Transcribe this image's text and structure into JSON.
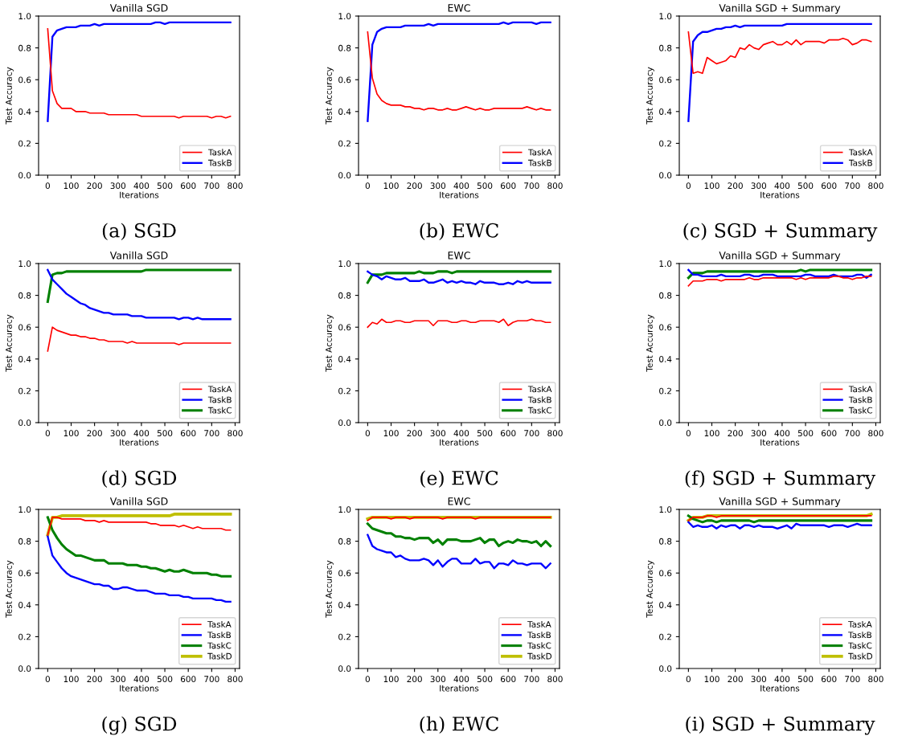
{
  "chart_data": [
    {
      "type": "line",
      "title": "Vanilla SGD",
      "xlabel": "Iterations",
      "ylabel": "Test Accuracy",
      "annotations": [
        "(a) SGD"
      ],
      "legend": "bottom right",
      "xlim": [
        -39,
        819
      ],
      "ylim": [
        0,
        1
      ],
      "xticks": [
        0,
        100,
        200,
        300,
        400,
        500,
        600,
        700,
        800
      ],
      "yticks": [
        {
          "value": 0,
          "label": "0.0"
        },
        {
          "value": 0.2,
          "label": "0.2"
        },
        {
          "value": 0.4,
          "label": "0.4"
        },
        {
          "value": 0.6,
          "label": "0.6"
        },
        {
          "value": 0.8,
          "label": "0.8"
        },
        {
          "value": 1,
          "label": "1.0"
        }
      ],
      "x": [
        0,
        20,
        40,
        60,
        80,
        100,
        120,
        140,
        160,
        180,
        200,
        220,
        240,
        260,
        280,
        300,
        320,
        340,
        360,
        380,
        400,
        420,
        440,
        460,
        480,
        500,
        520,
        540,
        560,
        580,
        600,
        620,
        640,
        660,
        680,
        700,
        720,
        740,
        760,
        780
      ],
      "series": [
        {
          "name": "TaskA",
          "color": "#ff0000",
          "values": [
            0.92,
            0.53,
            0.45,
            0.42,
            0.42,
            0.42,
            0.4,
            0.4,
            0.4,
            0.39,
            0.39,
            0.39,
            0.39,
            0.38,
            0.38,
            0.38,
            0.38,
            0.38,
            0.38,
            0.38,
            0.37,
            0.37,
            0.37,
            0.37,
            0.37,
            0.37,
            0.37,
            0.37,
            0.36,
            0.37,
            0.37,
            0.37,
            0.37,
            0.37,
            0.37,
            0.36,
            0.37,
            0.37,
            0.36,
            0.37
          ]
        },
        {
          "name": "TaskB",
          "color": "#0000ff",
          "values": [
            0.34,
            0.87,
            0.91,
            0.92,
            0.93,
            0.93,
            0.93,
            0.94,
            0.94,
            0.94,
            0.95,
            0.94,
            0.95,
            0.95,
            0.95,
            0.95,
            0.95,
            0.95,
            0.95,
            0.95,
            0.95,
            0.95,
            0.95,
            0.96,
            0.96,
            0.95,
            0.96,
            0.96,
            0.96,
            0.96,
            0.96,
            0.96,
            0.96,
            0.96,
            0.96,
            0.96,
            0.96,
            0.96,
            0.96,
            0.96
          ]
        }
      ]
    },
    {
      "type": "line",
      "title": "EWC",
      "xlabel": "Iterations",
      "ylabel": "Test Accuracy",
      "annotations": [
        "(b) EWC"
      ],
      "legend": "bottom right",
      "xlim": [
        -39,
        819
      ],
      "ylim": [
        0,
        1
      ],
      "xticks": [
        0,
        100,
        200,
        300,
        400,
        500,
        600,
        700,
        800
      ],
      "yticks": [
        {
          "value": 0,
          "label": "0.0"
        },
        {
          "value": 0.2,
          "label": "0.2"
        },
        {
          "value": 0.4,
          "label": "0.4"
        },
        {
          "value": 0.6,
          "label": "0.6"
        },
        {
          "value": 0.8,
          "label": "0.8"
        },
        {
          "value": 1,
          "label": "1.0"
        }
      ],
      "x": [
        0,
        20,
        40,
        60,
        80,
        100,
        120,
        140,
        160,
        180,
        200,
        220,
        240,
        260,
        280,
        300,
        320,
        340,
        360,
        380,
        400,
        420,
        440,
        460,
        480,
        500,
        520,
        540,
        560,
        580,
        600,
        620,
        640,
        660,
        680,
        700,
        720,
        740,
        760,
        780
      ],
      "series": [
        {
          "name": "TaskA",
          "color": "#ff0000",
          "values": [
            0.9,
            0.61,
            0.51,
            0.47,
            0.45,
            0.44,
            0.44,
            0.44,
            0.43,
            0.43,
            0.42,
            0.42,
            0.41,
            0.42,
            0.42,
            0.41,
            0.41,
            0.42,
            0.41,
            0.41,
            0.42,
            0.43,
            0.42,
            0.41,
            0.42,
            0.41,
            0.41,
            0.42,
            0.42,
            0.42,
            0.42,
            0.42,
            0.42,
            0.42,
            0.43,
            0.42,
            0.41,
            0.42,
            0.41,
            0.41
          ]
        },
        {
          "name": "TaskB",
          "color": "#0000ff",
          "values": [
            0.34,
            0.82,
            0.9,
            0.92,
            0.93,
            0.93,
            0.93,
            0.93,
            0.94,
            0.94,
            0.94,
            0.94,
            0.94,
            0.95,
            0.94,
            0.95,
            0.95,
            0.95,
            0.95,
            0.95,
            0.95,
            0.95,
            0.95,
            0.95,
            0.95,
            0.95,
            0.95,
            0.95,
            0.95,
            0.96,
            0.95,
            0.96,
            0.96,
            0.96,
            0.96,
            0.96,
            0.95,
            0.96,
            0.96,
            0.96
          ]
        }
      ]
    },
    {
      "type": "line",
      "title": "Vanilla SGD + Summary",
      "xlabel": "Iterations",
      "ylabel": "Test Accuracy",
      "annotations": [
        "(c) SGD + Summary"
      ],
      "legend": "bottom right",
      "xlim": [
        -39,
        819
      ],
      "ylim": [
        0,
        1
      ],
      "xticks": [
        0,
        100,
        200,
        300,
        400,
        500,
        600,
        700,
        800
      ],
      "yticks": [
        {
          "value": 0,
          "label": "0.0"
        },
        {
          "value": 0.2,
          "label": "0.2"
        },
        {
          "value": 0.4,
          "label": "0.4"
        },
        {
          "value": 0.6,
          "label": "0.6"
        },
        {
          "value": 0.8,
          "label": "0.8"
        },
        {
          "value": 1,
          "label": "1.0"
        }
      ],
      "x": [
        0,
        20,
        40,
        60,
        80,
        100,
        120,
        140,
        160,
        180,
        200,
        220,
        240,
        260,
        280,
        300,
        320,
        340,
        360,
        380,
        400,
        420,
        440,
        460,
        480,
        500,
        520,
        540,
        560,
        580,
        600,
        620,
        640,
        660,
        680,
        700,
        720,
        740,
        760,
        780
      ],
      "series": [
        {
          "name": "TaskA",
          "color": "#ff0000",
          "values": [
            0.9,
            0.64,
            0.65,
            0.64,
            0.74,
            0.72,
            0.7,
            0.71,
            0.72,
            0.75,
            0.74,
            0.8,
            0.79,
            0.82,
            0.8,
            0.79,
            0.82,
            0.83,
            0.84,
            0.82,
            0.82,
            0.84,
            0.82,
            0.85,
            0.82,
            0.84,
            0.84,
            0.84,
            0.84,
            0.83,
            0.85,
            0.85,
            0.85,
            0.86,
            0.85,
            0.82,
            0.83,
            0.85,
            0.85,
            0.84
          ]
        },
        {
          "name": "TaskB",
          "color": "#0000ff",
          "values": [
            0.34,
            0.84,
            0.88,
            0.9,
            0.9,
            0.91,
            0.92,
            0.92,
            0.93,
            0.93,
            0.94,
            0.93,
            0.94,
            0.94,
            0.94,
            0.94,
            0.94,
            0.94,
            0.94,
            0.94,
            0.94,
            0.95,
            0.95,
            0.95,
            0.95,
            0.95,
            0.95,
            0.95,
            0.95,
            0.95,
            0.95,
            0.95,
            0.95,
            0.95,
            0.95,
            0.95,
            0.95,
            0.95,
            0.95,
            0.95
          ]
        }
      ]
    },
    {
      "type": "line",
      "title": "Vanilla SGD",
      "xlabel": "Iterations",
      "ylabel": "Test Accuracy",
      "annotations": [
        "(d) SGD"
      ],
      "legend": "bottom right",
      "xlim": [
        -39,
        819
      ],
      "ylim": [
        0,
        1
      ],
      "xticks": [
        0,
        100,
        200,
        300,
        400,
        500,
        600,
        700,
        800
      ],
      "yticks": [
        {
          "value": 0,
          "label": "0.0"
        },
        {
          "value": 0.2,
          "label": "0.2"
        },
        {
          "value": 0.4,
          "label": "0.4"
        },
        {
          "value": 0.6,
          "label": "0.6"
        },
        {
          "value": 0.8,
          "label": "0.8"
        },
        {
          "value": 1,
          "label": "1.0"
        }
      ],
      "x": [
        0,
        20,
        40,
        60,
        80,
        100,
        120,
        140,
        160,
        180,
        200,
        220,
        240,
        260,
        280,
        300,
        320,
        340,
        360,
        380,
        400,
        420,
        440,
        460,
        480,
        500,
        520,
        540,
        560,
        580,
        600,
        620,
        640,
        660,
        680,
        700,
        720,
        740,
        760,
        780
      ],
      "series": [
        {
          "name": "TaskA",
          "color": "#ff0000",
          "values": [
            0.45,
            0.6,
            0.58,
            0.57,
            0.56,
            0.55,
            0.55,
            0.54,
            0.54,
            0.53,
            0.53,
            0.52,
            0.52,
            0.51,
            0.51,
            0.51,
            0.51,
            0.5,
            0.51,
            0.5,
            0.5,
            0.5,
            0.5,
            0.5,
            0.5,
            0.5,
            0.5,
            0.5,
            0.49,
            0.5,
            0.5,
            0.5,
            0.5,
            0.5,
            0.5,
            0.5,
            0.5,
            0.5,
            0.5,
            0.5
          ]
        },
        {
          "name": "TaskB",
          "color": "#0000ff",
          "values": [
            0.96,
            0.9,
            0.87,
            0.84,
            0.81,
            0.79,
            0.77,
            0.75,
            0.74,
            0.72,
            0.71,
            0.7,
            0.69,
            0.69,
            0.68,
            0.68,
            0.68,
            0.68,
            0.67,
            0.67,
            0.67,
            0.66,
            0.66,
            0.66,
            0.66,
            0.66,
            0.66,
            0.66,
            0.65,
            0.66,
            0.66,
            0.65,
            0.66,
            0.65,
            0.65,
            0.65,
            0.65,
            0.65,
            0.65,
            0.65
          ]
        },
        {
          "name": "TaskC",
          "color": "#008000",
          "values": [
            0.76,
            0.93,
            0.94,
            0.94,
            0.95,
            0.95,
            0.95,
            0.95,
            0.95,
            0.95,
            0.95,
            0.95,
            0.95,
            0.95,
            0.95,
            0.95,
            0.95,
            0.95,
            0.95,
            0.95,
            0.95,
            0.96,
            0.96,
            0.96,
            0.96,
            0.96,
            0.96,
            0.96,
            0.96,
            0.96,
            0.96,
            0.96,
            0.96,
            0.96,
            0.96,
            0.96,
            0.96,
            0.96,
            0.96,
            0.96
          ]
        }
      ]
    },
    {
      "type": "line",
      "title": "EWC",
      "xlabel": "Iterations",
      "ylabel": "Test Accuracy",
      "annotations": [
        "(e) EWC"
      ],
      "legend": "bottom right",
      "xlim": [
        -39,
        819
      ],
      "ylim": [
        0,
        1
      ],
      "xticks": [
        0,
        100,
        200,
        300,
        400,
        500,
        600,
        700,
        800
      ],
      "yticks": [
        {
          "value": 0,
          "label": "0.0"
        },
        {
          "value": 0.2,
          "label": "0.2"
        },
        {
          "value": 0.4,
          "label": "0.4"
        },
        {
          "value": 0.6,
          "label": "0.6"
        },
        {
          "value": 0.8,
          "label": "0.8"
        },
        {
          "value": 1,
          "label": "1.0"
        }
      ],
      "x": [
        0,
        20,
        40,
        60,
        80,
        100,
        120,
        140,
        160,
        180,
        200,
        220,
        240,
        260,
        280,
        300,
        320,
        340,
        360,
        380,
        400,
        420,
        440,
        460,
        480,
        500,
        520,
        540,
        560,
        580,
        600,
        620,
        640,
        660,
        680,
        700,
        720,
        740,
        760,
        780
      ],
      "series": [
        {
          "name": "TaskA",
          "color": "#ff0000",
          "values": [
            0.6,
            0.63,
            0.62,
            0.65,
            0.63,
            0.63,
            0.64,
            0.64,
            0.63,
            0.63,
            0.64,
            0.64,
            0.64,
            0.64,
            0.61,
            0.64,
            0.64,
            0.64,
            0.63,
            0.63,
            0.64,
            0.64,
            0.63,
            0.63,
            0.64,
            0.64,
            0.64,
            0.64,
            0.63,
            0.65,
            0.61,
            0.63,
            0.64,
            0.64,
            0.64,
            0.65,
            0.64,
            0.64,
            0.63,
            0.63
          ]
        },
        {
          "name": "TaskB",
          "color": "#0000ff",
          "values": [
            0.95,
            0.93,
            0.92,
            0.9,
            0.92,
            0.91,
            0.9,
            0.9,
            0.91,
            0.89,
            0.89,
            0.89,
            0.9,
            0.88,
            0.88,
            0.89,
            0.9,
            0.88,
            0.89,
            0.88,
            0.89,
            0.88,
            0.88,
            0.87,
            0.89,
            0.88,
            0.88,
            0.88,
            0.87,
            0.87,
            0.88,
            0.87,
            0.89,
            0.88,
            0.89,
            0.88,
            0.88,
            0.88,
            0.88,
            0.88
          ]
        },
        {
          "name": "TaskC",
          "color": "#008000",
          "values": [
            0.88,
            0.93,
            0.93,
            0.93,
            0.94,
            0.94,
            0.94,
            0.94,
            0.94,
            0.94,
            0.94,
            0.95,
            0.94,
            0.94,
            0.94,
            0.95,
            0.95,
            0.95,
            0.94,
            0.95,
            0.95,
            0.95,
            0.95,
            0.95,
            0.95,
            0.95,
            0.95,
            0.95,
            0.95,
            0.95,
            0.95,
            0.95,
            0.95,
            0.95,
            0.95,
            0.95,
            0.95,
            0.95,
            0.95,
            0.95
          ]
        }
      ]
    },
    {
      "type": "line",
      "title": "Vanilla SGD + Summary",
      "xlabel": "Iterations",
      "ylabel": "Test Accuracy",
      "annotations": [
        "(f) SGD + Summary"
      ],
      "legend": "bottom right",
      "xlim": [
        -39,
        819
      ],
      "ylim": [
        0,
        1
      ],
      "xticks": [
        0,
        100,
        200,
        300,
        400,
        500,
        600,
        700,
        800
      ],
      "yticks": [
        {
          "value": 0,
          "label": "0.0"
        },
        {
          "value": 0.2,
          "label": "0.2"
        },
        {
          "value": 0.4,
          "label": "0.4"
        },
        {
          "value": 0.6,
          "label": "0.6"
        },
        {
          "value": 0.8,
          "label": "0.8"
        },
        {
          "value": 1,
          "label": "1.0"
        }
      ],
      "x": [
        0,
        20,
        40,
        60,
        80,
        100,
        120,
        140,
        160,
        180,
        200,
        220,
        240,
        260,
        280,
        300,
        320,
        340,
        360,
        380,
        400,
        420,
        440,
        460,
        480,
        500,
        520,
        540,
        560,
        580,
        600,
        620,
        640,
        660,
        680,
        700,
        720,
        740,
        760,
        780
      ],
      "series": [
        {
          "name": "TaskA",
          "color": "#ff0000",
          "values": [
            0.86,
            0.89,
            0.89,
            0.89,
            0.9,
            0.9,
            0.9,
            0.89,
            0.9,
            0.9,
            0.9,
            0.9,
            0.9,
            0.91,
            0.9,
            0.9,
            0.91,
            0.91,
            0.91,
            0.91,
            0.91,
            0.91,
            0.91,
            0.9,
            0.91,
            0.9,
            0.91,
            0.91,
            0.91,
            0.91,
            0.91,
            0.92,
            0.92,
            0.91,
            0.91,
            0.9,
            0.91,
            0.91,
            0.92,
            0.92
          ]
        },
        {
          "name": "TaskB",
          "color": "#0000ff",
          "values": [
            0.96,
            0.93,
            0.93,
            0.92,
            0.92,
            0.92,
            0.92,
            0.93,
            0.92,
            0.92,
            0.92,
            0.92,
            0.93,
            0.93,
            0.92,
            0.92,
            0.93,
            0.93,
            0.93,
            0.92,
            0.92,
            0.92,
            0.92,
            0.92,
            0.92,
            0.93,
            0.93,
            0.92,
            0.92,
            0.92,
            0.92,
            0.93,
            0.92,
            0.92,
            0.92,
            0.92,
            0.93,
            0.93,
            0.91,
            0.93
          ]
        },
        {
          "name": "TaskC",
          "color": "#008000",
          "values": [
            0.91,
            0.94,
            0.94,
            0.94,
            0.95,
            0.95,
            0.95,
            0.95,
            0.95,
            0.95,
            0.95,
            0.95,
            0.95,
            0.95,
            0.95,
            0.95,
            0.95,
            0.95,
            0.95,
            0.95,
            0.95,
            0.95,
            0.95,
            0.95,
            0.96,
            0.95,
            0.96,
            0.96,
            0.96,
            0.96,
            0.96,
            0.96,
            0.96,
            0.96,
            0.96,
            0.96,
            0.96,
            0.96,
            0.96,
            0.96
          ]
        }
      ]
    },
    {
      "type": "line",
      "title": "Vanilla SGD",
      "xlabel": "Iterations",
      "ylabel": "Test Accuracy",
      "annotations": [
        "(g) SGD"
      ],
      "legend": "bottom right",
      "xlim": [
        -39,
        819
      ],
      "ylim": [
        0,
        1
      ],
      "xticks": [
        0,
        100,
        200,
        300,
        400,
        500,
        600,
        700,
        800
      ],
      "yticks": [
        {
          "value": 0,
          "label": "0.0"
        },
        {
          "value": 0.2,
          "label": "0.2"
        },
        {
          "value": 0.4,
          "label": "0.4"
        },
        {
          "value": 0.6,
          "label": "0.6"
        },
        {
          "value": 0.8,
          "label": "0.8"
        },
        {
          "value": 1,
          "label": "1.0"
        }
      ],
      "x": [
        0,
        20,
        40,
        60,
        80,
        100,
        120,
        140,
        160,
        180,
        200,
        220,
        240,
        260,
        280,
        300,
        320,
        340,
        360,
        380,
        400,
        420,
        440,
        460,
        480,
        500,
        520,
        540,
        560,
        580,
        600,
        620,
        640,
        660,
        680,
        700,
        720,
        740,
        760,
        780
      ],
      "series": [
        {
          "name": "TaskA",
          "color": "#ff0000",
          "values": [
            0.84,
            0.95,
            0.95,
            0.94,
            0.94,
            0.94,
            0.94,
            0.94,
            0.93,
            0.93,
            0.93,
            0.92,
            0.93,
            0.92,
            0.92,
            0.92,
            0.92,
            0.92,
            0.92,
            0.92,
            0.92,
            0.92,
            0.91,
            0.91,
            0.9,
            0.9,
            0.9,
            0.9,
            0.89,
            0.9,
            0.89,
            0.88,
            0.89,
            0.88,
            0.88,
            0.88,
            0.88,
            0.88,
            0.87,
            0.87
          ]
        },
        {
          "name": "TaskB",
          "color": "#0000ff",
          "values": [
            0.83,
            0.71,
            0.67,
            0.63,
            0.6,
            0.58,
            0.57,
            0.56,
            0.55,
            0.54,
            0.53,
            0.53,
            0.52,
            0.52,
            0.5,
            0.5,
            0.51,
            0.51,
            0.5,
            0.49,
            0.49,
            0.49,
            0.48,
            0.47,
            0.47,
            0.47,
            0.46,
            0.46,
            0.46,
            0.45,
            0.45,
            0.44,
            0.44,
            0.44,
            0.44,
            0.44,
            0.43,
            0.43,
            0.42,
            0.42
          ]
        },
        {
          "name": "TaskC",
          "color": "#008000",
          "values": [
            0.95,
            0.87,
            0.82,
            0.78,
            0.75,
            0.73,
            0.71,
            0.71,
            0.7,
            0.69,
            0.68,
            0.68,
            0.68,
            0.66,
            0.66,
            0.66,
            0.66,
            0.65,
            0.65,
            0.65,
            0.64,
            0.64,
            0.63,
            0.63,
            0.62,
            0.61,
            0.62,
            0.61,
            0.61,
            0.62,
            0.61,
            0.6,
            0.6,
            0.6,
            0.6,
            0.59,
            0.59,
            0.58,
            0.58,
            0.58
          ]
        },
        {
          "name": "TaskD",
          "color": "#bfbf00",
          "values": [
            0.84,
            0.95,
            0.95,
            0.96,
            0.96,
            0.96,
            0.96,
            0.96,
            0.96,
            0.96,
            0.96,
            0.96,
            0.96,
            0.96,
            0.96,
            0.96,
            0.96,
            0.96,
            0.96,
            0.96,
            0.96,
            0.96,
            0.96,
            0.96,
            0.96,
            0.96,
            0.96,
            0.97,
            0.97,
            0.97,
            0.97,
            0.97,
            0.97,
            0.97,
            0.97,
            0.97,
            0.97,
            0.97,
            0.97,
            0.97
          ]
        }
      ]
    },
    {
      "type": "line",
      "title": "EWC",
      "xlabel": "Iterations",
      "ylabel": "Test Accuracy",
      "annotations": [
        "(h) EWC"
      ],
      "legend": "bottom right",
      "xlim": [
        -39,
        819
      ],
      "ylim": [
        0,
        1
      ],
      "xticks": [
        0,
        100,
        200,
        300,
        400,
        500,
        600,
        700,
        800
      ],
      "yticks": [
        {
          "value": 0,
          "label": "0.0"
        },
        {
          "value": 0.2,
          "label": "0.2"
        },
        {
          "value": 0.4,
          "label": "0.4"
        },
        {
          "value": 0.6,
          "label": "0.6"
        },
        {
          "value": 0.8,
          "label": "0.8"
        },
        {
          "value": 1,
          "label": "1.0"
        }
      ],
      "x": [
        0,
        20,
        40,
        60,
        80,
        100,
        120,
        140,
        160,
        180,
        200,
        220,
        240,
        260,
        280,
        300,
        320,
        340,
        360,
        380,
        400,
        420,
        440,
        460,
        480,
        500,
        520,
        540,
        560,
        580,
        600,
        620,
        640,
        660,
        680,
        700,
        720,
        740,
        760,
        780
      ],
      "series": [
        {
          "name": "TaskA",
          "color": "#ff0000",
          "values": [
            0.93,
            0.95,
            0.95,
            0.95,
            0.95,
            0.94,
            0.95,
            0.95,
            0.95,
            0.94,
            0.95,
            0.95,
            0.95,
            0.95,
            0.95,
            0.95,
            0.94,
            0.95,
            0.95,
            0.95,
            0.95,
            0.95,
            0.95,
            0.94,
            0.95,
            0.95,
            0.95,
            0.95,
            0.95,
            0.95,
            0.95,
            0.95,
            0.95,
            0.95,
            0.95,
            0.95,
            0.95,
            0.95,
            0.95,
            0.95
          ]
        },
        {
          "name": "TaskB",
          "color": "#0000ff",
          "values": [
            0.84,
            0.77,
            0.75,
            0.74,
            0.73,
            0.73,
            0.7,
            0.71,
            0.69,
            0.68,
            0.68,
            0.68,
            0.69,
            0.68,
            0.65,
            0.68,
            0.64,
            0.67,
            0.69,
            0.69,
            0.66,
            0.66,
            0.66,
            0.69,
            0.66,
            0.67,
            0.67,
            0.63,
            0.66,
            0.66,
            0.65,
            0.68,
            0.66,
            0.66,
            0.65,
            0.66,
            0.66,
            0.66,
            0.63,
            0.66
          ]
        },
        {
          "name": "TaskC",
          "color": "#008000",
          "values": [
            0.91,
            0.88,
            0.87,
            0.86,
            0.85,
            0.85,
            0.83,
            0.83,
            0.82,
            0.82,
            0.81,
            0.82,
            0.82,
            0.82,
            0.79,
            0.81,
            0.78,
            0.81,
            0.81,
            0.81,
            0.8,
            0.8,
            0.8,
            0.81,
            0.82,
            0.79,
            0.81,
            0.81,
            0.77,
            0.79,
            0.8,
            0.79,
            0.81,
            0.8,
            0.8,
            0.79,
            0.8,
            0.77,
            0.8,
            0.77
          ]
        },
        {
          "name": "TaskD",
          "color": "#bfbf00",
          "values": [
            0.94,
            0.95,
            0.95,
            0.95,
            0.95,
            0.95,
            0.95,
            0.95,
            0.95,
            0.95,
            0.95,
            0.95,
            0.95,
            0.95,
            0.95,
            0.95,
            0.95,
            0.95,
            0.95,
            0.95,
            0.95,
            0.95,
            0.95,
            0.95,
            0.95,
            0.95,
            0.95,
            0.95,
            0.95,
            0.95,
            0.95,
            0.95,
            0.95,
            0.95,
            0.95,
            0.95,
            0.95,
            0.95,
            0.95,
            0.95
          ]
        }
      ]
    },
    {
      "type": "line",
      "title": "Vanilla SGD + Summary",
      "xlabel": "Iterations",
      "ylabel": "Test Accuracy",
      "annotations": [
        "(i) SGD + Summary"
      ],
      "legend": "bottom right",
      "xlim": [
        -39,
        819
      ],
      "ylim": [
        0,
        1
      ],
      "xticks": [
        0,
        100,
        200,
        300,
        400,
        500,
        600,
        700,
        800
      ],
      "yticks": [
        {
          "value": 0,
          "label": "0.0"
        },
        {
          "value": 0.2,
          "label": "0.2"
        },
        {
          "value": 0.4,
          "label": "0.4"
        },
        {
          "value": 0.6,
          "label": "0.6"
        },
        {
          "value": 0.8,
          "label": "0.8"
        },
        {
          "value": 1,
          "label": "1.0"
        }
      ],
      "x": [
        0,
        20,
        40,
        60,
        80,
        100,
        120,
        140,
        160,
        180,
        200,
        220,
        240,
        260,
        280,
        300,
        320,
        340,
        360,
        380,
        400,
        420,
        440,
        460,
        480,
        500,
        520,
        540,
        560,
        580,
        600,
        620,
        640,
        660,
        680,
        700,
        720,
        740,
        760,
        780
      ],
      "series": [
        {
          "name": "TaskA",
          "color": "#ff0000",
          "values": [
            0.93,
            0.95,
            0.95,
            0.95,
            0.96,
            0.96,
            0.95,
            0.96,
            0.96,
            0.96,
            0.96,
            0.96,
            0.96,
            0.96,
            0.96,
            0.96,
            0.96,
            0.96,
            0.96,
            0.96,
            0.96,
            0.96,
            0.96,
            0.96,
            0.96,
            0.96,
            0.96,
            0.96,
            0.96,
            0.96,
            0.96,
            0.96,
            0.96,
            0.96,
            0.96,
            0.96,
            0.96,
            0.96,
            0.96,
            0.96
          ]
        },
        {
          "name": "TaskB",
          "color": "#0000ff",
          "values": [
            0.92,
            0.89,
            0.9,
            0.89,
            0.89,
            0.9,
            0.88,
            0.9,
            0.89,
            0.9,
            0.9,
            0.88,
            0.9,
            0.9,
            0.89,
            0.9,
            0.89,
            0.89,
            0.89,
            0.88,
            0.89,
            0.9,
            0.88,
            0.91,
            0.9,
            0.9,
            0.9,
            0.9,
            0.9,
            0.9,
            0.89,
            0.9,
            0.9,
            0.9,
            0.89,
            0.9,
            0.91,
            0.9,
            0.9,
            0.9
          ]
        },
        {
          "name": "TaskC",
          "color": "#008000",
          "values": [
            0.96,
            0.94,
            0.93,
            0.92,
            0.93,
            0.93,
            0.92,
            0.93,
            0.93,
            0.93,
            0.93,
            0.93,
            0.93,
            0.93,
            0.92,
            0.93,
            0.93,
            0.93,
            0.93,
            0.93,
            0.93,
            0.93,
            0.93,
            0.93,
            0.93,
            0.93,
            0.93,
            0.93,
            0.93,
            0.93,
            0.93,
            0.93,
            0.93,
            0.93,
            0.93,
            0.93,
            0.93,
            0.93,
            0.93,
            0.93
          ]
        },
        {
          "name": "TaskD",
          "color": "#bfbf00",
          "values": [
            0.93,
            0.95,
            0.95,
            0.95,
            0.96,
            0.96,
            0.96,
            0.96,
            0.96,
            0.96,
            0.96,
            0.96,
            0.96,
            0.96,
            0.96,
            0.96,
            0.96,
            0.96,
            0.96,
            0.96,
            0.96,
            0.96,
            0.96,
            0.96,
            0.96,
            0.96,
            0.96,
            0.96,
            0.96,
            0.96,
            0.96,
            0.96,
            0.96,
            0.96,
            0.96,
            0.96,
            0.96,
            0.96,
            0.96,
            0.97
          ]
        }
      ]
    }
  ]
}
